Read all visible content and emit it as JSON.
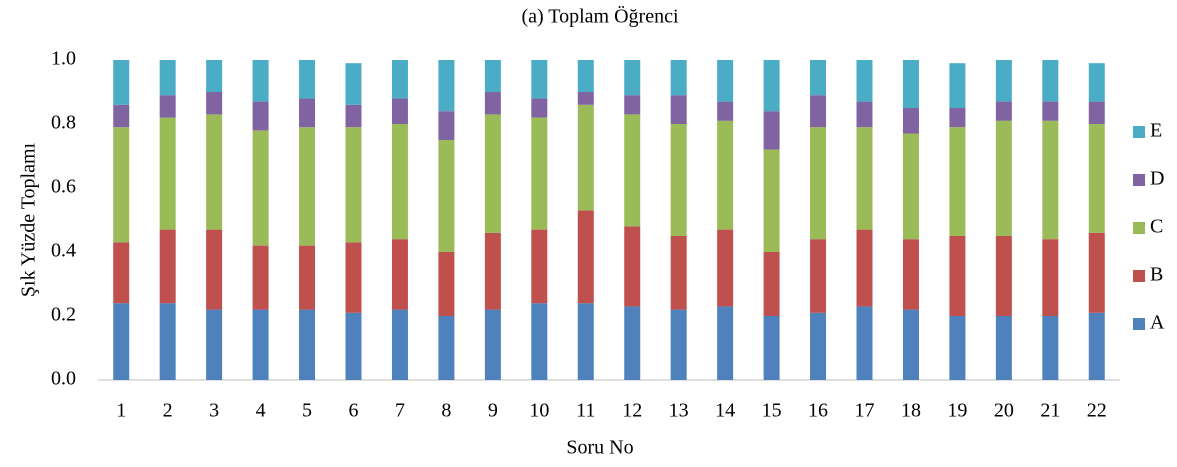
{
  "chart_data": {
    "type": "stacked_bar",
    "title": "(a) Toplam Öğrenci",
    "xlabel": "Soru No",
    "ylabel": "Şık Yüzde Toplamı",
    "categories": [
      "1",
      "2",
      "3",
      "4",
      "5",
      "6",
      "7",
      "8",
      "9",
      "10",
      "11",
      "12",
      "13",
      "14",
      "15",
      "16",
      "17",
      "18",
      "19",
      "20",
      "21",
      "22"
    ],
    "series": [
      {
        "name": "A",
        "color": "#4f81bd",
        "values": [
          0.24,
          0.24,
          0.22,
          0.22,
          0.22,
          0.21,
          0.22,
          0.2,
          0.22,
          0.24,
          0.24,
          0.23,
          0.22,
          0.23,
          0.2,
          0.21,
          0.23,
          0.22,
          0.2,
          0.2,
          0.2,
          0.21
        ]
      },
      {
        "name": "B",
        "color": "#c0504d",
        "values": [
          0.19,
          0.23,
          0.25,
          0.2,
          0.2,
          0.22,
          0.22,
          0.2,
          0.24,
          0.23,
          0.29,
          0.25,
          0.23,
          0.24,
          0.2,
          0.23,
          0.24,
          0.22,
          0.25,
          0.25,
          0.24,
          0.25
        ]
      },
      {
        "name": "C",
        "color": "#9bbb59",
        "values": [
          0.36,
          0.35,
          0.36,
          0.36,
          0.37,
          0.36,
          0.36,
          0.35,
          0.37,
          0.35,
          0.33,
          0.35,
          0.35,
          0.34,
          0.32,
          0.35,
          0.32,
          0.33,
          0.34,
          0.36,
          0.37,
          0.34
        ]
      },
      {
        "name": "D",
        "color": "#8064a2",
        "values": [
          0.07,
          0.07,
          0.07,
          0.09,
          0.09,
          0.07,
          0.08,
          0.09,
          0.07,
          0.06,
          0.04,
          0.06,
          0.09,
          0.06,
          0.12,
          0.1,
          0.08,
          0.08,
          0.06,
          0.06,
          0.06,
          0.07
        ]
      },
      {
        "name": "E",
        "color": "#4bacc6",
        "values": [
          0.14,
          0.11,
          0.1,
          0.13,
          0.12,
          0.13,
          0.12,
          0.16,
          0.1,
          0.12,
          0.1,
          0.11,
          0.11,
          0.13,
          0.16,
          0.11,
          0.13,
          0.15,
          0.14,
          0.13,
          0.13,
          0.12
        ]
      }
    ],
    "ylim": [
      0,
      1
    ],
    "yticks": [
      {
        "value": 0,
        "label": "0.0"
      },
      0.2,
      0.4,
      0.6,
      0.8,
      {
        "value": 1,
        "label": "1.0"
      }
    ],
    "legend": "right"
  }
}
